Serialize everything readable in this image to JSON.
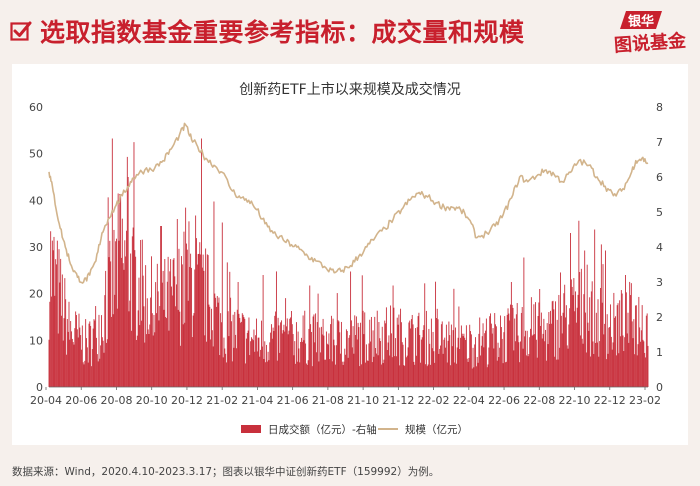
{
  "page": {
    "title": "选取指数基金重要参考指标：成交量和规模",
    "logo_line1": "银华",
    "logo_line2": "图说基金",
    "footnote": "数据来源：Wind，2020.4.10-2023.3.17；图表以银华中证创新药ETF（159992）为例。"
  },
  "colors": {
    "title_red": "#c8202d",
    "volume_bar": "#c8303c",
    "scale_line": "#d2b48c",
    "background": "#f6f0ec"
  },
  "chart_data": {
    "type": "bar+line",
    "title": "创新药ETF上市以来规模及成交情况",
    "x_ticks": [
      "20-04",
      "20-06",
      "20-08",
      "20-10",
      "20-12",
      "21-02",
      "21-04",
      "21-06",
      "21-08",
      "21-10",
      "21-12",
      "22-02",
      "22-04",
      "22-06",
      "22-08",
      "22-10",
      "22-12",
      "23-02"
    ],
    "x_range": [
      "2020-04-10",
      "2023-03-17"
    ],
    "left_axis": {
      "ticks": [
        0,
        10,
        20,
        30,
        40,
        50,
        60
      ],
      "ylim": [
        0,
        60
      ]
    },
    "right_axis": {
      "ticks": [
        0,
        1,
        2,
        3,
        4,
        5,
        6,
        7,
        8
      ],
      "ylim": [
        0,
        8
      ]
    },
    "grid": false,
    "legend_position": "bottom",
    "series": [
      {
        "name": "日成交额（亿元）-右轴",
        "type": "bar",
        "axis": "right",
        "color": "#c8303c",
        "monthly_typical": [
          [
            2020.29,
            3.0
          ],
          [
            2020.37,
            1.5
          ],
          [
            2020.46,
            1.1
          ],
          [
            2020.54,
            1.9
          ],
          [
            2020.62,
            3.5
          ],
          [
            2020.71,
            2.6
          ],
          [
            2020.79,
            2.1
          ],
          [
            2020.87,
            2.3
          ],
          [
            2020.96,
            2.9
          ],
          [
            2021.04,
            2.4
          ],
          [
            2021.12,
            1.6
          ],
          [
            2021.21,
            1.4
          ],
          [
            2021.29,
            1.2
          ],
          [
            2021.37,
            1.3
          ],
          [
            2021.46,
            1.3
          ],
          [
            2021.54,
            1.3
          ],
          [
            2021.62,
            1.2
          ],
          [
            2021.71,
            1.2
          ],
          [
            2021.79,
            1.3
          ],
          [
            2021.87,
            1.4
          ],
          [
            2021.96,
            1.4
          ],
          [
            2022.04,
            1.3
          ],
          [
            2022.12,
            1.3
          ],
          [
            2022.21,
            1.2
          ],
          [
            2022.29,
            1.1
          ],
          [
            2022.37,
            1.2
          ],
          [
            2022.46,
            1.3
          ],
          [
            2022.54,
            1.4
          ],
          [
            2022.62,
            1.5
          ],
          [
            2022.71,
            1.4
          ],
          [
            2022.79,
            1.8
          ],
          [
            2022.87,
            2.1
          ],
          [
            2022.96,
            1.8
          ],
          [
            2023.04,
            1.6
          ],
          [
            2023.12,
            1.8
          ],
          [
            2023.21,
            1.7
          ]
        ],
        "peaks": [
          [
            2020.28,
            4.45
          ],
          [
            2020.58,
            7.1
          ],
          [
            2020.62,
            5.5
          ],
          [
            2020.66,
            6.0
          ],
          [
            2020.72,
            4.2
          ],
          [
            2020.82,
            4.6
          ],
          [
            2020.9,
            4.8
          ],
          [
            2020.99,
            4.9
          ],
          [
            2021.02,
            7.1
          ],
          [
            2021.08,
            5.3
          ],
          [
            2021.12,
            4.7
          ],
          [
            2021.2,
            3.0
          ],
          [
            2021.32,
            3.2
          ],
          [
            2021.55,
            2.9
          ],
          [
            2021.75,
            3.3
          ],
          [
            2021.96,
            2.9
          ],
          [
            2022.28,
            2.3
          ],
          [
            2022.54,
            3.0
          ],
          [
            2022.6,
            3.7
          ],
          [
            2022.68,
            2.8
          ],
          [
            2022.83,
            4.4
          ],
          [
            2022.87,
            4.75
          ],
          [
            2022.9,
            3.9
          ],
          [
            2022.95,
            4.5
          ],
          [
            2023.0,
            3.9
          ],
          [
            2023.1,
            3.2
          ]
        ]
      },
      {
        "name": "规模（亿元）",
        "type": "line",
        "axis": "left",
        "color": "#d2b48c",
        "points": [
          [
            2020.27,
            46.1
          ],
          [
            2020.29,
            42.0
          ],
          [
            2020.32,
            35.0
          ],
          [
            2020.35,
            30.0
          ],
          [
            2020.38,
            26.0
          ],
          [
            2020.41,
            23.5
          ],
          [
            2020.44,
            22.5
          ],
          [
            2020.47,
            24.0
          ],
          [
            2020.5,
            27.0
          ],
          [
            2020.53,
            33.0
          ],
          [
            2020.56,
            36.0
          ],
          [
            2020.6,
            39.0
          ],
          [
            2020.63,
            41.0
          ],
          [
            2020.67,
            44.0
          ],
          [
            2020.7,
            45.5
          ],
          [
            2020.74,
            46.5
          ],
          [
            2020.79,
            47.0
          ],
          [
            2020.83,
            48.5
          ],
          [
            2020.87,
            51.0
          ],
          [
            2020.91,
            54.0
          ],
          [
            2020.94,
            56.2
          ],
          [
            2020.97,
            53.0
          ],
          [
            2021.0,
            51.5
          ],
          [
            2021.04,
            49.0
          ],
          [
            2021.08,
            47.5
          ],
          [
            2021.12,
            46.0
          ],
          [
            2021.17,
            42.0
          ],
          [
            2021.21,
            40.5
          ],
          [
            2021.25,
            40.0
          ],
          [
            2021.29,
            38.0
          ],
          [
            2021.33,
            35.0
          ],
          [
            2021.37,
            33.0
          ],
          [
            2021.42,
            31.5
          ],
          [
            2021.46,
            30.5
          ],
          [
            2021.5,
            29.5
          ],
          [
            2021.54,
            28.0
          ],
          [
            2021.58,
            27.0
          ],
          [
            2021.63,
            25.5
          ],
          [
            2021.67,
            24.5
          ],
          [
            2021.71,
            25.0
          ],
          [
            2021.75,
            26.0
          ],
          [
            2021.79,
            28.0
          ],
          [
            2021.83,
            30.0
          ],
          [
            2021.87,
            32.0
          ],
          [
            2021.92,
            34.0
          ],
          [
            2021.96,
            36.0
          ],
          [
            2022.0,
            38.0
          ],
          [
            2022.04,
            40.0
          ],
          [
            2022.08,
            41.5
          ],
          [
            2022.12,
            41.0
          ],
          [
            2022.17,
            39.5
          ],
          [
            2022.21,
            38.5
          ],
          [
            2022.25,
            38.5
          ],
          [
            2022.29,
            38.0
          ],
          [
            2022.33,
            36.0
          ],
          [
            2022.37,
            32.0
          ],
          [
            2022.42,
            33.0
          ],
          [
            2022.46,
            34.5
          ],
          [
            2022.5,
            37.0
          ],
          [
            2022.54,
            40.5
          ],
          [
            2022.58,
            45.0
          ],
          [
            2022.62,
            44.0
          ],
          [
            2022.67,
            45.5
          ],
          [
            2022.71,
            46.5
          ],
          [
            2022.75,
            45.5
          ],
          [
            2022.79,
            44.0
          ],
          [
            2022.83,
            46.0
          ],
          [
            2022.87,
            48.5
          ],
          [
            2022.92,
            47.5
          ],
          [
            2022.96,
            45.0
          ],
          [
            2023.0,
            43.0
          ],
          [
            2023.04,
            41.0
          ],
          [
            2023.08,
            42.0
          ],
          [
            2023.12,
            45.0
          ],
          [
            2023.15,
            48.5
          ],
          [
            2023.18,
            49.0
          ],
          [
            2023.21,
            48.0
          ]
        ]
      }
    ]
  }
}
